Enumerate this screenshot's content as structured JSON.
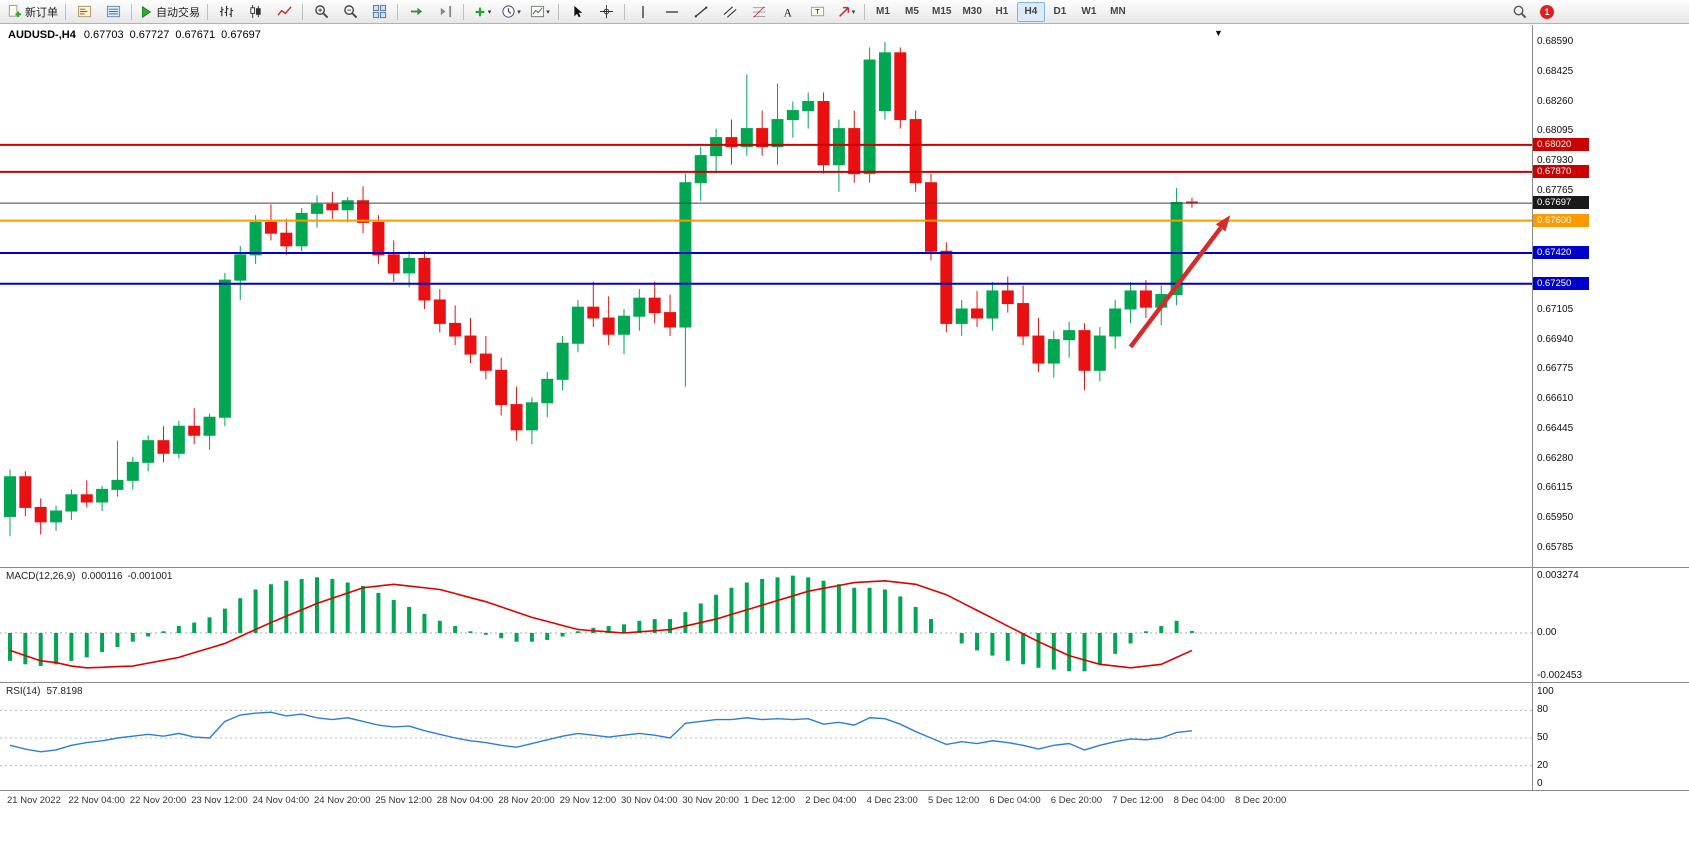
{
  "toolbar": {
    "new_order_label": "新订单",
    "autotrading_label": "自动交易",
    "timeframes": [
      "M1",
      "M5",
      "M15",
      "M30",
      "H1",
      "H4",
      "D1",
      "W1",
      "MN"
    ],
    "active_timeframe": "H4",
    "notification_count": "1"
  },
  "chart_header": {
    "symbol_period": "AUDUSD-,H4",
    "open": "0.67703",
    "high": "0.67727",
    "low": "0.67671",
    "close": "0.67697"
  },
  "price_axis": {
    "labels": [
      "0.68590",
      "0.68425",
      "0.68260",
      "0.68095",
      "0.67930",
      "0.67765",
      "0.67105",
      "0.66940",
      "0.66775",
      "0.66610",
      "0.66445",
      "0.66280",
      "0.66115",
      "0.65950",
      "0.65785"
    ],
    "tags": [
      {
        "text": "0.68020",
        "color": "#cc0000"
      },
      {
        "text": "0.67870",
        "color": "#cc0000"
      },
      {
        "text": "0.67697",
        "color": "#1a1a1a"
      },
      {
        "text": "0.67600",
        "color": "#ff9900"
      },
      {
        "text": "0.67420",
        "color": "#0000cc"
      },
      {
        "text": "0.67250",
        "color": "#0000cc"
      }
    ]
  },
  "indicators": {
    "macd": {
      "name": "MACD(12,26,9)",
      "value": "0.000116",
      "signal_value": "-0.001001",
      "axis_top": "0.003274",
      "axis_zero": "0.00",
      "axis_bottom": "-0.002453"
    },
    "rsi": {
      "name": "RSI(14)",
      "value": "57.8198",
      "axis_labels": [
        "100",
        "80",
        "50",
        "20",
        "0"
      ],
      "levels": [
        80,
        50,
        20
      ]
    }
  },
  "chart_data": {
    "type": "candlestick",
    "symbol": "AUDUSD-",
    "timeframe": "H4",
    "ylim": [
      0.65785,
      0.6859
    ],
    "colors": {
      "up": "#00a651",
      "down": "#e81010"
    },
    "x_labels": [
      "21 Nov 2022",
      "22 Nov 04:00",
      "22 Nov 20:00",
      "23 Nov 12:00",
      "24 Nov 04:00",
      "24 Nov 20:00",
      "25 Nov 12:00",
      "28 Nov 04:00",
      "28 Nov 20:00",
      "29 Nov 12:00",
      "30 Nov 04:00",
      "30 Nov 20:00",
      "1 Dec 12:00",
      "2 Dec 04:00",
      "4 Dec 23:00",
      "5 Dec 12:00",
      "6 Dec 04:00",
      "6 Dec 20:00",
      "7 Dec 12:00",
      "8 Dec 04:00",
      "8 Dec 20:00"
    ],
    "candles_ohlc": [
      [
        0.6596,
        0.6622,
        0.6585,
        0.6618
      ],
      [
        0.6618,
        0.6621,
        0.6596,
        0.6601
      ],
      [
        0.6601,
        0.6606,
        0.6586,
        0.6593
      ],
      [
        0.6593,
        0.6602,
        0.6588,
        0.6599
      ],
      [
        0.6599,
        0.6611,
        0.6594,
        0.6608
      ],
      [
        0.6608,
        0.6616,
        0.6601,
        0.6604
      ],
      [
        0.6604,
        0.6613,
        0.6599,
        0.6611
      ],
      [
        0.6611,
        0.6638,
        0.6607,
        0.6616
      ],
      [
        0.6616,
        0.6629,
        0.6611,
        0.6626
      ],
      [
        0.6626,
        0.6641,
        0.6621,
        0.6638
      ],
      [
        0.6638,
        0.6646,
        0.6626,
        0.6631
      ],
      [
        0.6631,
        0.6649,
        0.6628,
        0.6646
      ],
      [
        0.6646,
        0.6656,
        0.6636,
        0.6641
      ],
      [
        0.6641,
        0.6653,
        0.6633,
        0.6651
      ],
      [
        0.6651,
        0.6731,
        0.6646,
        0.6727
      ],
      [
        0.6727,
        0.6746,
        0.6716,
        0.6741
      ],
      [
        0.6741,
        0.6763,
        0.6736,
        0.6759
      ],
      [
        0.6759,
        0.6769,
        0.6749,
        0.6753
      ],
      [
        0.6753,
        0.6761,
        0.6741,
        0.6746
      ],
      [
        0.6746,
        0.6767,
        0.6743,
        0.6764
      ],
      [
        0.6764,
        0.6774,
        0.6756,
        0.6769
      ],
      [
        0.6769,
        0.6776,
        0.6761,
        0.6766
      ],
      [
        0.6766,
        0.6773,
        0.6759,
        0.6771
      ],
      [
        0.6771,
        0.6779,
        0.6753,
        0.6759
      ],
      [
        0.6759,
        0.6763,
        0.6736,
        0.6741
      ],
      [
        0.6741,
        0.6749,
        0.6726,
        0.6731
      ],
      [
        0.6731,
        0.6743,
        0.6723,
        0.6739
      ],
      [
        0.6739,
        0.6743,
        0.6711,
        0.6716
      ],
      [
        0.6716,
        0.6722,
        0.6698,
        0.6703
      ],
      [
        0.6703,
        0.6713,
        0.6691,
        0.6696
      ],
      [
        0.6696,
        0.6706,
        0.6681,
        0.6686
      ],
      [
        0.6686,
        0.6696,
        0.6672,
        0.6677
      ],
      [
        0.6677,
        0.6684,
        0.6652,
        0.6658
      ],
      [
        0.6658,
        0.6668,
        0.6638,
        0.6644
      ],
      [
        0.6644,
        0.6662,
        0.6636,
        0.6659
      ],
      [
        0.6659,
        0.6676,
        0.6651,
        0.6672
      ],
      [
        0.6672,
        0.6696,
        0.6666,
        0.6692
      ],
      [
        0.6692,
        0.6716,
        0.6687,
        0.6712
      ],
      [
        0.6712,
        0.6726,
        0.6701,
        0.6706
      ],
      [
        0.6706,
        0.6718,
        0.6691,
        0.6697
      ],
      [
        0.6697,
        0.6711,
        0.6686,
        0.6707
      ],
      [
        0.6707,
        0.6722,
        0.6699,
        0.6717
      ],
      [
        0.6717,
        0.6726,
        0.6703,
        0.6709
      ],
      [
        0.6709,
        0.6719,
        0.6696,
        0.6701
      ],
      [
        0.6701,
        0.6786,
        0.6668,
        0.6781
      ],
      [
        0.6781,
        0.6801,
        0.6771,
        0.6796
      ],
      [
        0.6796,
        0.6811,
        0.6786,
        0.6806
      ],
      [
        0.6806,
        0.6816,
        0.6791,
        0.6801
      ],
      [
        0.6801,
        0.6841,
        0.6796,
        0.6811
      ],
      [
        0.6811,
        0.6821,
        0.6796,
        0.6801
      ],
      [
        0.6801,
        0.6836,
        0.6791,
        0.6816
      ],
      [
        0.6816,
        0.6826,
        0.6806,
        0.6821
      ],
      [
        0.6821,
        0.6831,
        0.6811,
        0.6826
      ],
      [
        0.6826,
        0.6831,
        0.6786,
        0.6791
      ],
      [
        0.6791,
        0.6816,
        0.6776,
        0.6811
      ],
      [
        0.6811,
        0.6821,
        0.6781,
        0.6786
      ],
      [
        0.6786,
        0.6856,
        0.6781,
        0.6849
      ],
      [
        0.6821,
        0.6859,
        0.6816,
        0.6853
      ],
      [
        0.6853,
        0.6856,
        0.6811,
        0.6816
      ],
      [
        0.6816,
        0.6821,
        0.6776,
        0.6781
      ],
      [
        0.6781,
        0.6786,
        0.6738,
        0.6743
      ],
      [
        0.6743,
        0.6748,
        0.6698,
        0.6703
      ],
      [
        0.6703,
        0.6716,
        0.6696,
        0.6711
      ],
      [
        0.6711,
        0.6721,
        0.6701,
        0.6706
      ],
      [
        0.6706,
        0.6726,
        0.6699,
        0.6721
      ],
      [
        0.6721,
        0.6729,
        0.6709,
        0.6714
      ],
      [
        0.6714,
        0.6724,
        0.6691,
        0.6696
      ],
      [
        0.6696,
        0.6706,
        0.6676,
        0.6681
      ],
      [
        0.6681,
        0.6699,
        0.6673,
        0.6694
      ],
      [
        0.6694,
        0.6704,
        0.6684,
        0.6699
      ],
      [
        0.6699,
        0.6703,
        0.6666,
        0.6677
      ],
      [
        0.6677,
        0.6701,
        0.6671,
        0.6696
      ],
      [
        0.6696,
        0.6716,
        0.6689,
        0.6711
      ],
      [
        0.6711,
        0.6726,
        0.6703,
        0.6721
      ],
      [
        0.6721,
        0.6727,
        0.6706,
        0.6712
      ],
      [
        0.6712,
        0.6724,
        0.6702,
        0.6719
      ],
      [
        0.6719,
        0.6778,
        0.6713,
        0.677
      ],
      [
        0.67703,
        0.67727,
        0.67671,
        0.67697
      ]
    ],
    "horizontal_lines": [
      {
        "price": 0.6802,
        "color": "#cc0000",
        "width": 2
      },
      {
        "price": 0.6787,
        "color": "#cc0000",
        "width": 2
      },
      {
        "price": 0.67697,
        "color": "#404040",
        "width": 1
      },
      {
        "price": 0.676,
        "color": "#ff9900",
        "width": 2
      },
      {
        "price": 0.6742,
        "color": "#0000cc",
        "width": 2
      },
      {
        "price": 0.6725,
        "color": "#0000cc",
        "width": 2
      }
    ],
    "series": [
      {
        "name": "MACD histogram",
        "type": "histogram",
        "color": "#00a651",
        "values": [
          -0.0016,
          -0.0018,
          -0.0019,
          -0.0018,
          -0.0016,
          -0.0014,
          -0.0011,
          -0.0008,
          -0.0005,
          -0.0002,
          0.0001,
          0.0004,
          0.0006,
          0.0009,
          0.0014,
          0.002,
          0.0025,
          0.0028,
          0.003,
          0.0031,
          0.0032,
          0.0031,
          0.0029,
          0.0027,
          0.0023,
          0.0019,
          0.0015,
          0.0011,
          0.0007,
          0.0004,
          0.0001,
          -0.0001,
          -0.0003,
          -0.0005,
          -0.0005,
          -0.0004,
          -0.0002,
          0.0001,
          0.0003,
          0.0004,
          0.0005,
          0.0007,
          0.0008,
          0.0008,
          0.0012,
          0.0017,
          0.0022,
          0.0026,
          0.0029,
          0.0031,
          0.0032,
          0.0033,
          0.0032,
          0.003,
          0.0028,
          0.0026,
          0.0026,
          0.0025,
          0.0021,
          0.0015,
          0.0008,
          0.0,
          -0.0006,
          -0.001,
          -0.0013,
          -0.0016,
          -0.0018,
          -0.002,
          -0.0021,
          -0.0022,
          -0.0022,
          -0.0018,
          -0.0012,
          -0.0006,
          0.0001,
          0.0004,
          0.0007,
          0.000116
        ]
      },
      {
        "name": "MACD signal",
        "type": "line",
        "color": "#e00000",
        "values": [
          -0.001,
          -0.0013,
          -0.0016,
          -0.0017,
          -0.0019,
          -0.002,
          -0.00197,
          -0.00193,
          -0.0019,
          -0.00173,
          -0.00157,
          -0.0014,
          -0.00113,
          -0.00087,
          -0.0006,
          -0.0002,
          0.0002,
          0.0006,
          0.00097,
          0.00133,
          0.0017,
          0.002,
          0.0023,
          0.0026,
          0.0027,
          0.0028,
          0.0027,
          0.0026,
          0.0025,
          0.00227,
          0.00203,
          0.0018,
          0.0015,
          0.0012,
          0.0009,
          0.00067,
          0.00043,
          0.0002,
          0.00013,
          7e-05,
          0.0,
          7e-05,
          0.00013,
          0.0002,
          0.0004,
          0.0006,
          0.0008,
          0.00107,
          0.00133,
          0.0016,
          0.00187,
          0.00213,
          0.0024,
          0.00257,
          0.00273,
          0.0029,
          0.00295,
          0.003,
          0.0029,
          0.0028,
          0.0025,
          0.0022,
          0.00175,
          0.0013,
          0.00085,
          0.0004,
          -5e-05,
          -0.0005,
          -0.0009,
          -0.0013,
          -0.00155,
          -0.0018,
          -0.0019,
          -0.002,
          -0.0019,
          -0.0018,
          -0.0014,
          -0.001001
        ]
      },
      {
        "name": "RSI",
        "type": "line",
        "color": "#2b7fd4",
        "range": [
          0,
          100
        ],
        "values": [
          42,
          38,
          35,
          37,
          42,
          45,
          47,
          50,
          52,
          54,
          52,
          55,
          51,
          50,
          68,
          75,
          77,
          78,
          74,
          76,
          72,
          70,
          72,
          68,
          64,
          62,
          63,
          58,
          54,
          50,
          47,
          45,
          42,
          40,
          44,
          48,
          52,
          55,
          53,
          51,
          53,
          55,
          53,
          50,
          66,
          68,
          70,
          70,
          72,
          70,
          71,
          70,
          71,
          65,
          67,
          64,
          72,
          71,
          65,
          57,
          50,
          43,
          46,
          44,
          47,
          45,
          42,
          38,
          42,
          44,
          37,
          42,
          46,
          49,
          48,
          50,
          56,
          57.8198
        ]
      }
    ],
    "annotation_arrow": {
      "from_index": 73,
      "from_price": 0.669,
      "to_index": 79.5,
      "to_price": 0.6763,
      "color": "#d42b2b"
    }
  }
}
